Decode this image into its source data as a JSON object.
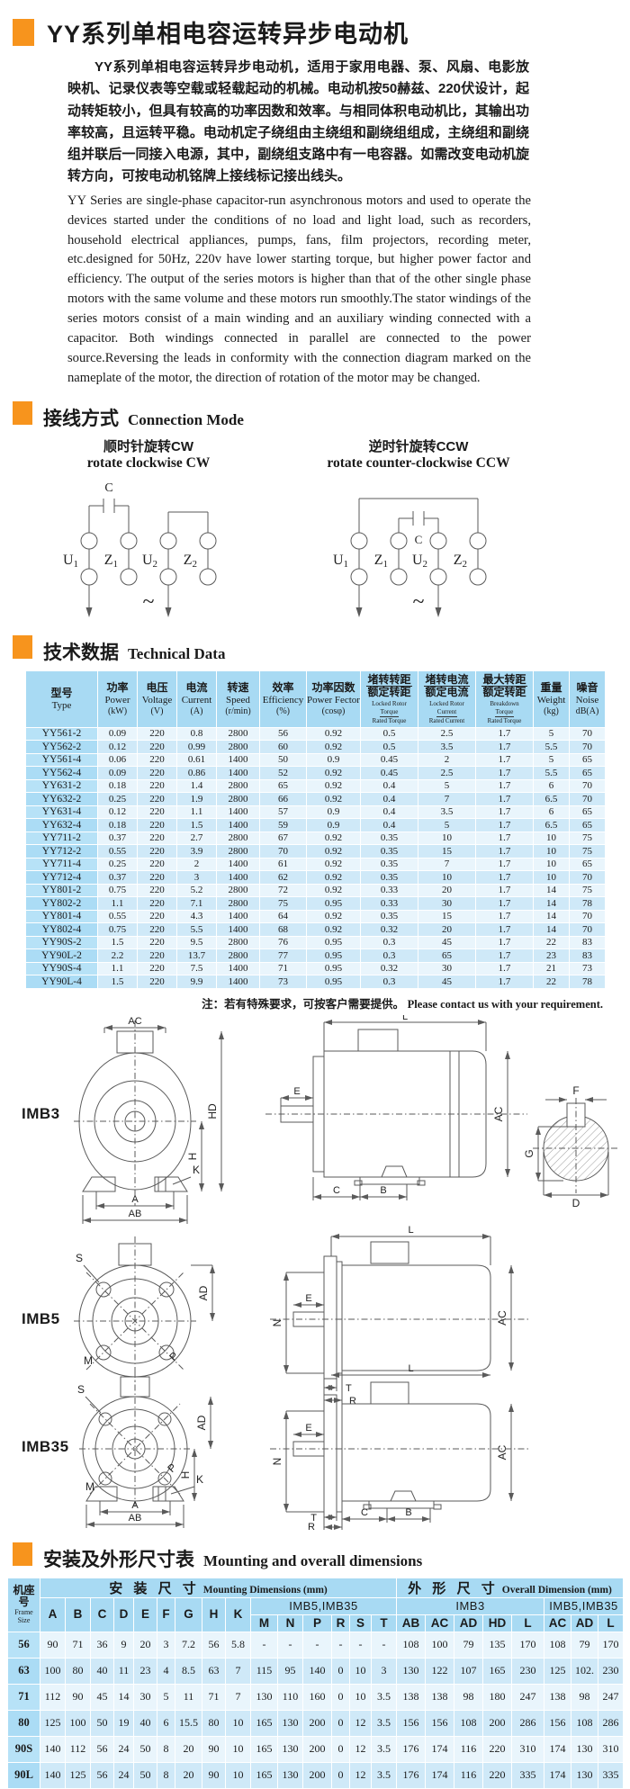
{
  "accent_color": "#F7941D",
  "table_colors": {
    "header": "#A8DAF3",
    "first_col": "#B7E2F7",
    "row_light": "#E9F5FC",
    "row_dark": "#CFE9F8"
  },
  "title": "YY系列单相电容运转异步电动机",
  "intro_cn": "YY系列单相电容运转异步电动机，适用于家用电器、泵、风扇、电影放映机、记录仪表等空载或轻载起动的机械。电动机按50赫兹、220伏设计，起动转矩较小，但具有较高的功率因数和效率。与相同体积电动机比，其输出功率较高，且运转平稳。电动机定子绕组由主绕组和副绕组组成，主绕组和副绕组并联后一同接入电源，其中，副绕组支路中有一电容器。如需改变电动机旋转方向，可按电动机铭牌上接线标记接出线头。",
  "intro_en": "YY Series are single-phase capacitor-run asynchronous motors and used to operate the devices started under the conditions of no load and light load, such as recorders, household electrical appliances, pumps, fans, film projectors, recording meter, etc.designed for 50Hz, 220v have lower starting torque, but higher power factor and efficiency. The output of the series motors is higher than that of the other single phase motors with the same volume and these motors run smoothly.The stator windings of the series motors consist of a main winding and an auxiliary winding connected with a capacitor. Both windings connected in parallel are connected to the power source.Reversing the leads in conformity with the connection diagram marked on the nameplate of the motor, the direction of rotation of the motor may be changed.",
  "connection_section": {
    "cn": "接线方式",
    "en": "Connection Mode"
  },
  "connection": {
    "cw": {
      "title_cn": "顺时针旋转CW",
      "title_en": "rotate clockwise CW",
      "capacitor_label": "C",
      "ac_symbol": "~",
      "terminals": [
        "U1",
        "Z1",
        "U2",
        "Z2"
      ]
    },
    "ccw": {
      "title_cn": "逆时针旋转CCW",
      "title_en": "rotate counter-clockwise CCW",
      "capacitor_label": "C",
      "ac_symbol": "~",
      "terminals": [
        "U1",
        "Z1",
        "U2",
        "Z2"
      ]
    }
  },
  "technical_section": {
    "cn": "技术数据",
    "en": "Technical Data"
  },
  "tech_table": {
    "headers": [
      {
        "cn": "型号",
        "en": "Type"
      },
      {
        "cn": "功率",
        "en": "Power",
        "unit": "(kW)"
      },
      {
        "cn": "电压",
        "en": "Voltage",
        "unit": "(V)"
      },
      {
        "cn": "电流",
        "en": "Current",
        "unit": "(A)"
      },
      {
        "cn": "转速",
        "en": "Speed",
        "unit": "(r/min)"
      },
      {
        "cn": "效率",
        "en": "Efficiency",
        "unit": "(%)"
      },
      {
        "cn": "功率因数",
        "en": "Power Fector",
        "unit": "(cosφ)"
      },
      {
        "cn_top": "堵转转距",
        "cn_bot": "额定转距",
        "en_lines": [
          "Locked Rotor",
          "Torque",
          "Rated Torque"
        ]
      },
      {
        "cn_top": "堵转电流",
        "cn_bot": "额定电流",
        "en_lines": [
          "Locked Rotor",
          "Current",
          "Rated Current"
        ]
      },
      {
        "cn_top": "最大转距",
        "cn_bot": "额定转距",
        "en_lines": [
          "Breakdown",
          "Torque",
          "Rated Torque"
        ]
      },
      {
        "cn": "重量",
        "en": "Weight",
        "unit": "(kg)"
      },
      {
        "cn": "噪音",
        "en": "Noise",
        "unit": "dB(A)"
      }
    ],
    "rows": [
      [
        "YY561-2",
        "0.09",
        "220",
        "0.8",
        "2800",
        "56",
        "0.92",
        "0.5",
        "2.5",
        "1.7",
        "5",
        "70"
      ],
      [
        "YY562-2",
        "0.12",
        "220",
        "0.99",
        "2800",
        "60",
        "0.92",
        "0.5",
        "3.5",
        "1.7",
        "5.5",
        "70"
      ],
      [
        "YY561-4",
        "0.06",
        "220",
        "0.61",
        "1400",
        "50",
        "0.9",
        "0.45",
        "2",
        "1.7",
        "5",
        "65"
      ],
      [
        "YY562-4",
        "0.09",
        "220",
        "0.86",
        "1400",
        "52",
        "0.92",
        "0.45",
        "2.5",
        "1.7",
        "5.5",
        "65"
      ],
      [
        "YY631-2",
        "0.18",
        "220",
        "1.4",
        "2800",
        "65",
        "0.92",
        "0.4",
        "5",
        "1.7",
        "6",
        "70"
      ],
      [
        "YY632-2",
        "0.25",
        "220",
        "1.9",
        "2800",
        "66",
        "0.92",
        "0.4",
        "7",
        "1.7",
        "6.5",
        "70"
      ],
      [
        "YY631-4",
        "0.12",
        "220",
        "1.1",
        "1400",
        "57",
        "0.9",
        "0.4",
        "3.5",
        "1.7",
        "6",
        "65"
      ],
      [
        "YY632-4",
        "0.18",
        "220",
        "1.5",
        "1400",
        "59",
        "0.9",
        "0.4",
        "5",
        "1.7",
        "6.5",
        "65"
      ],
      [
        "YY711-2",
        "0.37",
        "220",
        "2.7",
        "2800",
        "67",
        "0.92",
        "0.35",
        "10",
        "1.7",
        "10",
        "75"
      ],
      [
        "YY712-2",
        "0.55",
        "220",
        "3.9",
        "2800",
        "70",
        "0.92",
        "0.35",
        "15",
        "1.7",
        "10",
        "75"
      ],
      [
        "YY711-4",
        "0.25",
        "220",
        "2",
        "1400",
        "61",
        "0.92",
        "0.35",
        "7",
        "1.7",
        "10",
        "65"
      ],
      [
        "YY712-4",
        "0.37",
        "220",
        "3",
        "1400",
        "62",
        "0.92",
        "0.35",
        "10",
        "1.7",
        "10",
        "70"
      ],
      [
        "YY801-2",
        "0.75",
        "220",
        "5.2",
        "2800",
        "72",
        "0.92",
        "0.33",
        "20",
        "1.7",
        "14",
        "75"
      ],
      [
        "YY802-2",
        "1.1",
        "220",
        "7.1",
        "2800",
        "75",
        "0.95",
        "0.33",
        "30",
        "1.7",
        "14",
        "78"
      ],
      [
        "YY801-4",
        "0.55",
        "220",
        "4.3",
        "1400",
        "64",
        "0.92",
        "0.35",
        "15",
        "1.7",
        "14",
        "70"
      ],
      [
        "YY802-4",
        "0.75",
        "220",
        "5.5",
        "1400",
        "68",
        "0.92",
        "0.32",
        "20",
        "1.7",
        "14",
        "70"
      ],
      [
        "YY90S-2",
        "1.5",
        "220",
        "9.5",
        "2800",
        "76",
        "0.95",
        "0.3",
        "45",
        "1.7",
        "22",
        "83"
      ],
      [
        "YY90L-2",
        "2.2",
        "220",
        "13.7",
        "2800",
        "77",
        "0.95",
        "0.3",
        "65",
        "1.7",
        "23",
        "83"
      ],
      [
        "YY90S-4",
        "1.1",
        "220",
        "7.5",
        "1400",
        "71",
        "0.95",
        "0.32",
        "30",
        "1.7",
        "21",
        "73"
      ],
      [
        "YY90L-4",
        "1.5",
        "220",
        "9.9",
        "1400",
        "73",
        "0.95",
        "0.3",
        "45",
        "1.7",
        "22",
        "78"
      ]
    ]
  },
  "note": {
    "cn": "注：若有特殊要求，可按客户需要提供。",
    "en": "Please contact us with your requirement."
  },
  "drawings": {
    "items": [
      {
        "label": "IMB3"
      },
      {
        "label": "IMB5"
      },
      {
        "label": "IMB35"
      }
    ],
    "dim_labels": {
      "imb3_front": [
        "AC",
        "HD",
        "H",
        "K",
        "A",
        "AB"
      ],
      "imb3_side": [
        "L",
        "E",
        "AC",
        "C",
        "B"
      ],
      "shaft": [
        "F",
        "G",
        "D"
      ],
      "imb5_front": [
        "S",
        "AD",
        "M",
        "P"
      ],
      "imb5_side": [
        "L",
        "E",
        "N",
        "AC",
        "T",
        "R"
      ],
      "imb35_front": [
        "S",
        "AD",
        "M",
        "P",
        "H",
        "K",
        "A",
        "AB"
      ],
      "imb35_side": [
        "L",
        "E",
        "N",
        "AC",
        "T",
        "R",
        "C",
        "B"
      ]
    }
  },
  "mounting_section": {
    "cn": "安装及外形尺寸表",
    "en": "Mounting and overall dimensions"
  },
  "mount_table": {
    "frame_header": {
      "cn": "机座号",
      "en": "Frame Size"
    },
    "group1": {
      "cn": "安 装 尺 寸",
      "en": "Mounting Dimensions (mm)"
    },
    "group2": {
      "cn": "外 形 尺 寸",
      "en": "Overall Dimension (mm)"
    },
    "sub1": [
      "A",
      "B",
      "C",
      "D",
      "E",
      "F",
      "G",
      "H",
      "K"
    ],
    "sub1b_label": "IMB5,IMB35",
    "sub1b": [
      "M",
      "N",
      "P",
      "R",
      "S",
      "T"
    ],
    "sub2a_label": "IMB3",
    "sub2a": [
      "AB",
      "AC",
      "AD",
      "HD",
      "L"
    ],
    "sub2b_label": "IMB5,IMB35",
    "sub2b": [
      "AC",
      "AD",
      "L"
    ],
    "rows": [
      [
        "56",
        "90",
        "71",
        "36",
        "9",
        "20",
        "3",
        "7.2",
        "56",
        "5.8",
        "-",
        "-",
        "-",
        "-",
        "-",
        "-",
        "108",
        "100",
        "79",
        "135",
        "170",
        "108",
        "79",
        "170"
      ],
      [
        "63",
        "100",
        "80",
        "40",
        "11",
        "23",
        "4",
        "8.5",
        "63",
        "7",
        "115",
        "95",
        "140",
        "0",
        "10",
        "3",
        "130",
        "122",
        "107",
        "165",
        "230",
        "125",
        "102.",
        "230"
      ],
      [
        "71",
        "112",
        "90",
        "45",
        "14",
        "30",
        "5",
        "11",
        "71",
        "7",
        "130",
        "110",
        "160",
        "0",
        "10",
        "3.5",
        "138",
        "138",
        "98",
        "180",
        "247",
        "138",
        "98",
        "247"
      ],
      [
        "80",
        "125",
        "100",
        "50",
        "19",
        "40",
        "6",
        "15.5",
        "80",
        "10",
        "165",
        "130",
        "200",
        "0",
        "12",
        "3.5",
        "156",
        "156",
        "108",
        "200",
        "286",
        "156",
        "108",
        "286"
      ],
      [
        "90S",
        "140",
        "112",
        "56",
        "24",
        "50",
        "8",
        "20",
        "90",
        "10",
        "165",
        "130",
        "200",
        "0",
        "12",
        "3.5",
        "176",
        "174",
        "116",
        "220",
        "310",
        "174",
        "130",
        "310"
      ],
      [
        "90L",
        "140",
        "125",
        "56",
        "24",
        "50",
        "8",
        "20",
        "90",
        "10",
        "165",
        "130",
        "200",
        "0",
        "12",
        "3.5",
        "176",
        "174",
        "116",
        "220",
        "335",
        "174",
        "130",
        "335"
      ]
    ]
  }
}
